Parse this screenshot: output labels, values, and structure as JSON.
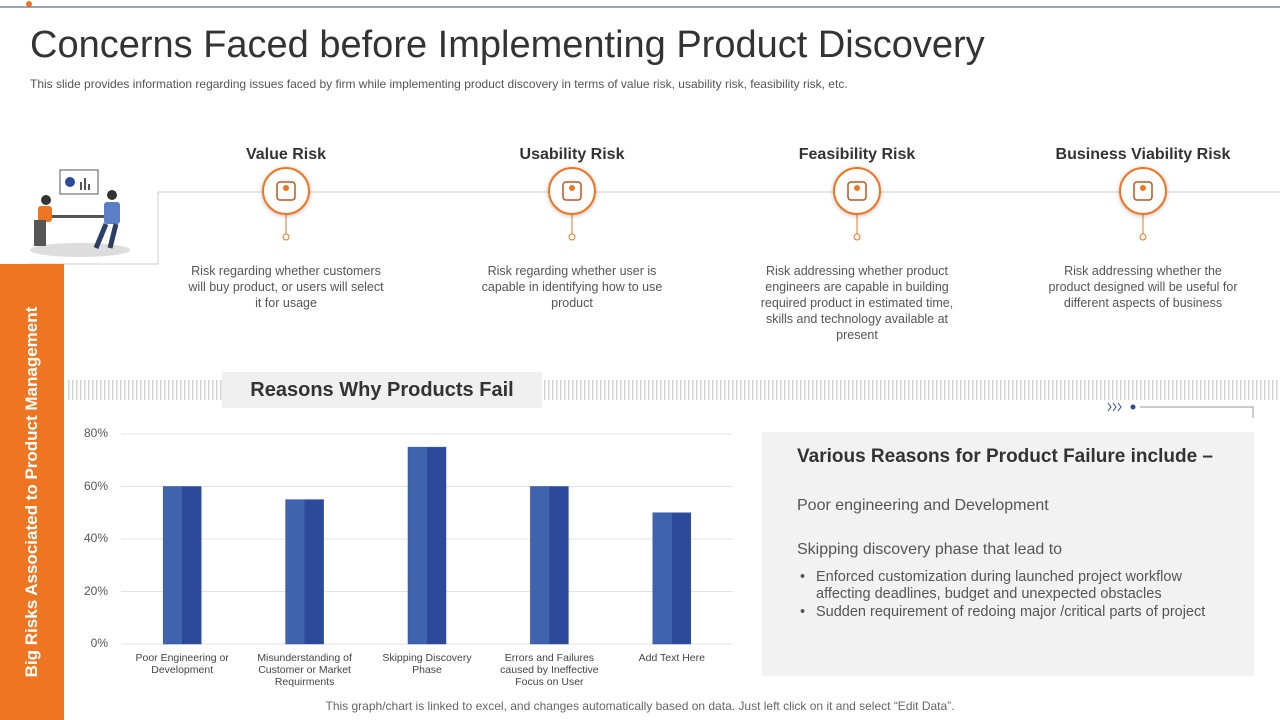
{
  "header": {
    "title": "Concerns Faced before Implementing Product Discovery",
    "subtitle": "This slide provides information regarding issues faced by firm while implementing product discovery in terms of value risk, usability risk, feasibility risk, etc."
  },
  "sidebar_label": "Big Risks Associated to Product Management",
  "risks": [
    {
      "title": "Value Risk",
      "description": "Risk regarding whether customers will buy product, or users will select it for usage"
    },
    {
      "title": "Usability Risk",
      "description": "Risk regarding whether user is capable in identifying how to use product"
    },
    {
      "title": "Feasibility Risk",
      "description": "Risk addressing whether product engineers are capable in building required product in estimated time, skills and technology available at present"
    },
    {
      "title": "Business Viability Risk",
      "description": "Risk addressing whether the product designed will be useful for different aspects of business"
    }
  ],
  "chart_data": {
    "type": "bar",
    "title": "Reasons Why Products Fail",
    "categories": [
      "Poor Engineering or Development",
      "Misunderstanding of Customer or Market Requirments",
      "Skipping Discovery Phase",
      "Errors and Failures caused by Ineffective Focus on User",
      "Add Text Here"
    ],
    "values": [
      60,
      55,
      75,
      60,
      50
    ],
    "color": "#2f4f9e",
    "ylim": [
      0,
      80
    ],
    "yticks": [
      {
        "value": 0,
        "label": "0%"
      },
      {
        "value": 20,
        "label": "20%"
      },
      {
        "value": 40,
        "label": "40%"
      },
      {
        "value": 60,
        "label": "60%"
      },
      {
        "value": 80,
        "label": "80%"
      }
    ],
    "grid": true
  },
  "reasons_panel": {
    "heading": "Various Reasons for Product Failure include –",
    "items": [
      {
        "text": "Poor engineering and Development",
        "subitems": []
      },
      {
        "text": "Skipping discovery phase that lead to",
        "subitems": [
          "Enforced customization during launched project workflow affecting deadlines, budget and unexpected obstacles",
          "Sudden requirement of redoing major /critical parts of project"
        ]
      }
    ]
  },
  "footnote": "This graph/chart is linked to excel, and changes automatically based on data. Just left click on it and select “Edit Data”."
}
